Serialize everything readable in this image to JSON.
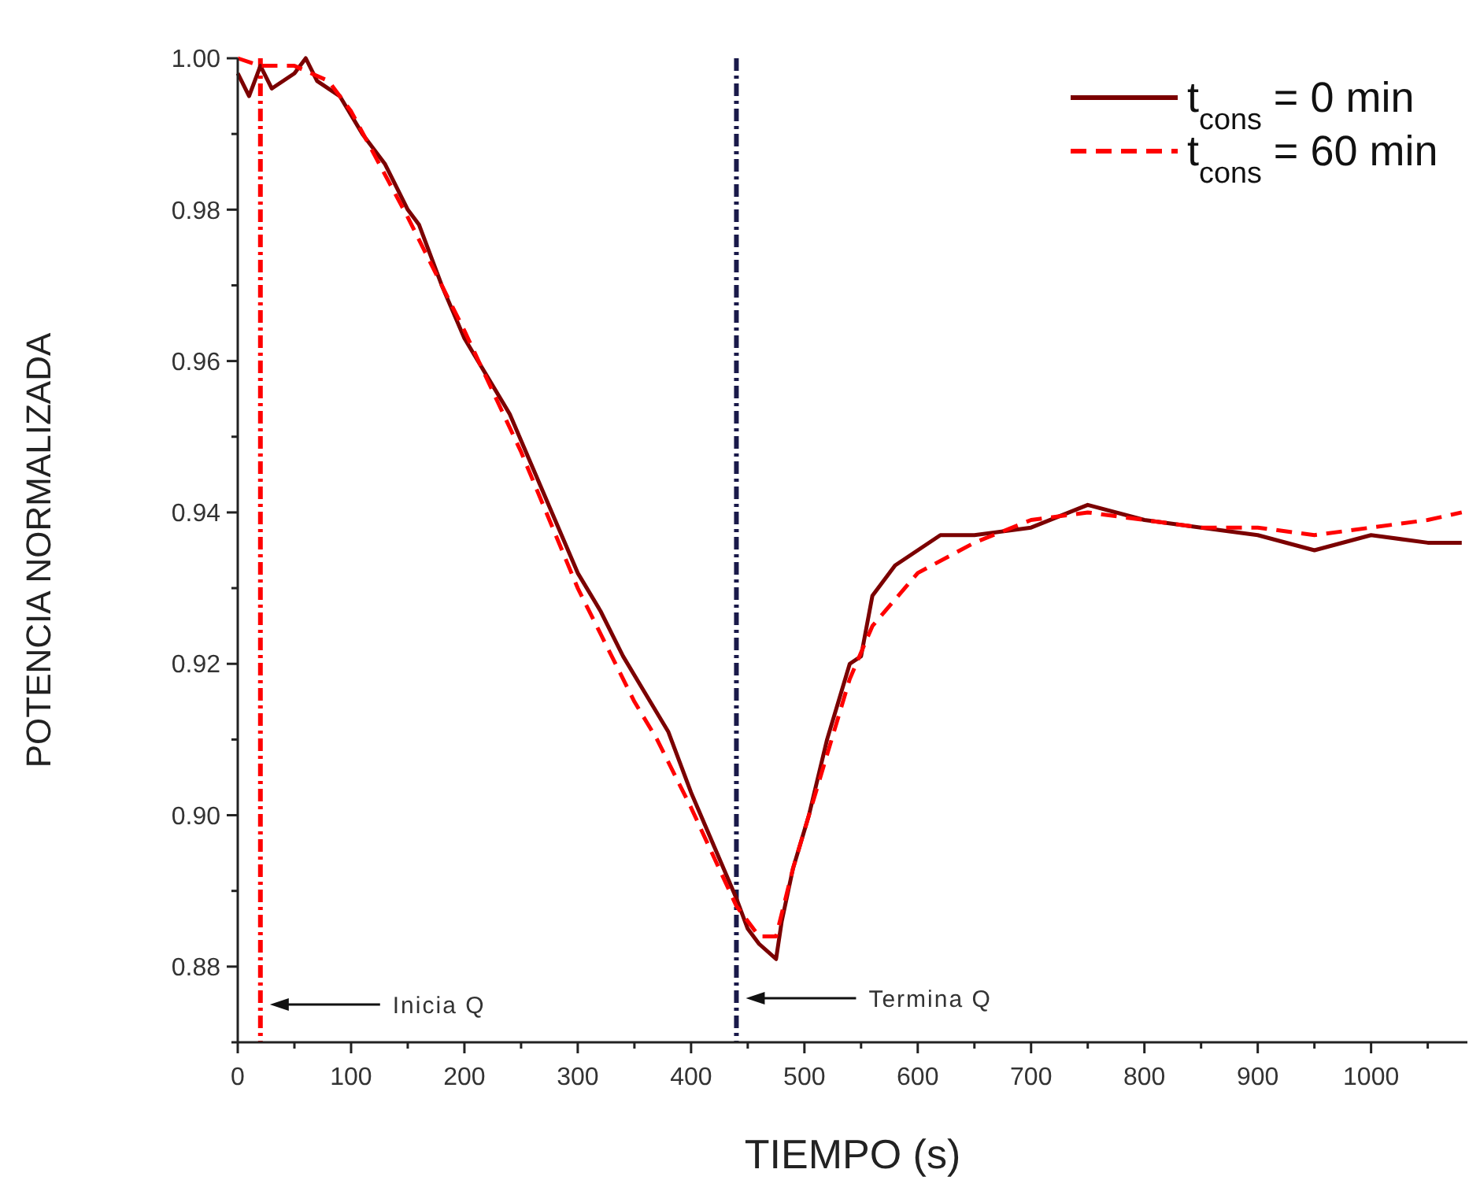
{
  "chart_data": {
    "type": "line",
    "xlabel": "TIEMPO (s)",
    "ylabel": "POTENCIA NORMALIZADA",
    "xlim": [
      0,
      1085
    ],
    "ylim": [
      0.87,
      1.0
    ],
    "xticks": [
      0,
      {
        "value": 50,
        "label": null
      },
      100,
      {
        "value": 150,
        "label": null
      },
      200,
      {
        "value": 250,
        "label": null
      },
      300,
      {
        "value": 350,
        "label": null
      },
      400,
      {
        "value": 450,
        "label": null
      },
      500,
      {
        "value": 550,
        "label": null
      },
      600,
      {
        "value": 650,
        "label": null
      },
      700,
      {
        "value": 750,
        "label": null
      },
      800,
      {
        "value": 850,
        "label": null
      },
      900,
      {
        "value": 950,
        "label": null
      },
      1000,
      {
        "value": 1050,
        "label": null
      }
    ],
    "yticks": [
      {
        "value": 0.87,
        "label": null
      },
      0.88,
      {
        "value": 0.89,
        "label": null
      },
      {
        "value": 0.9,
        "label": "0.90"
      },
      {
        "value": 0.91,
        "label": null
      },
      0.92,
      {
        "value": 0.93,
        "label": null
      },
      0.94,
      {
        "value": 0.95,
        "label": null
      },
      0.96,
      {
        "value": 0.97,
        "label": null
      },
      0.98,
      {
        "value": 0.99,
        "label": null
      },
      {
        "value": 1.0,
        "label": "1.00"
      }
    ],
    "legend": "top right",
    "grid": false,
    "series": [
      {
        "name": "t$_{cons}$ = 0 min",
        "color": "#7b0000",
        "line_style": "solid",
        "x": [
          0,
          10,
          20,
          30,
          50,
          60,
          70,
          90,
          110,
          130,
          150,
          160,
          180,
          200,
          220,
          240,
          260,
          280,
          300,
          320,
          340,
          360,
          380,
          400,
          420,
          440,
          450,
          460,
          475,
          480,
          490,
          504,
          520,
          540,
          550,
          560,
          580,
          600,
          620,
          650,
          700,
          750,
          800,
          850,
          900,
          950,
          1000,
          1050,
          1080
        ],
        "values": [
          0.998,
          0.995,
          0.999,
          0.996,
          0.998,
          1.0,
          0.997,
          0.995,
          0.99,
          0.986,
          0.98,
          0.978,
          0.97,
          0.963,
          0.958,
          0.953,
          0.946,
          0.939,
          0.932,
          0.927,
          0.921,
          0.916,
          0.911,
          0.903,
          0.896,
          0.889,
          0.885,
          0.883,
          0.881,
          0.886,
          0.893,
          0.9,
          0.91,
          0.92,
          0.921,
          0.929,
          0.933,
          0.935,
          0.937,
          0.937,
          0.938,
          0.941,
          0.939,
          0.938,
          0.937,
          0.935,
          0.937,
          0.936,
          0.936
        ]
      },
      {
        "name": "t$_{cons}$ = 60 min",
        "color": "#ff0000",
        "line_style": "dashed",
        "x": [
          0,
          20,
          50,
          80,
          100,
          150,
          200,
          250,
          300,
          350,
          370,
          400,
          440,
          460,
          475,
          490,
          520,
          540,
          560,
          600,
          650,
          700,
          750,
          800,
          850,
          900,
          950,
          1000,
          1050,
          1080
        ],
        "values": [
          1.0,
          0.999,
          0.999,
          0.997,
          0.993,
          0.979,
          0.964,
          0.948,
          0.93,
          0.915,
          0.91,
          0.901,
          0.888,
          0.884,
          0.884,
          0.893,
          0.908,
          0.918,
          0.925,
          0.932,
          0.936,
          0.939,
          0.94,
          0.939,
          0.938,
          0.938,
          0.937,
          0.938,
          0.939,
          0.94
        ]
      }
    ],
    "ref_lines": [
      {
        "axis": "x",
        "value": 20,
        "color": "#ff0000",
        "line_style": "dashdot"
      },
      {
        "axis": "x",
        "value": 440,
        "color": "#1a1a4a",
        "line_style": "dashdot"
      }
    ],
    "annotations": [
      "Inicia Q",
      "Termina Q"
    ]
  }
}
